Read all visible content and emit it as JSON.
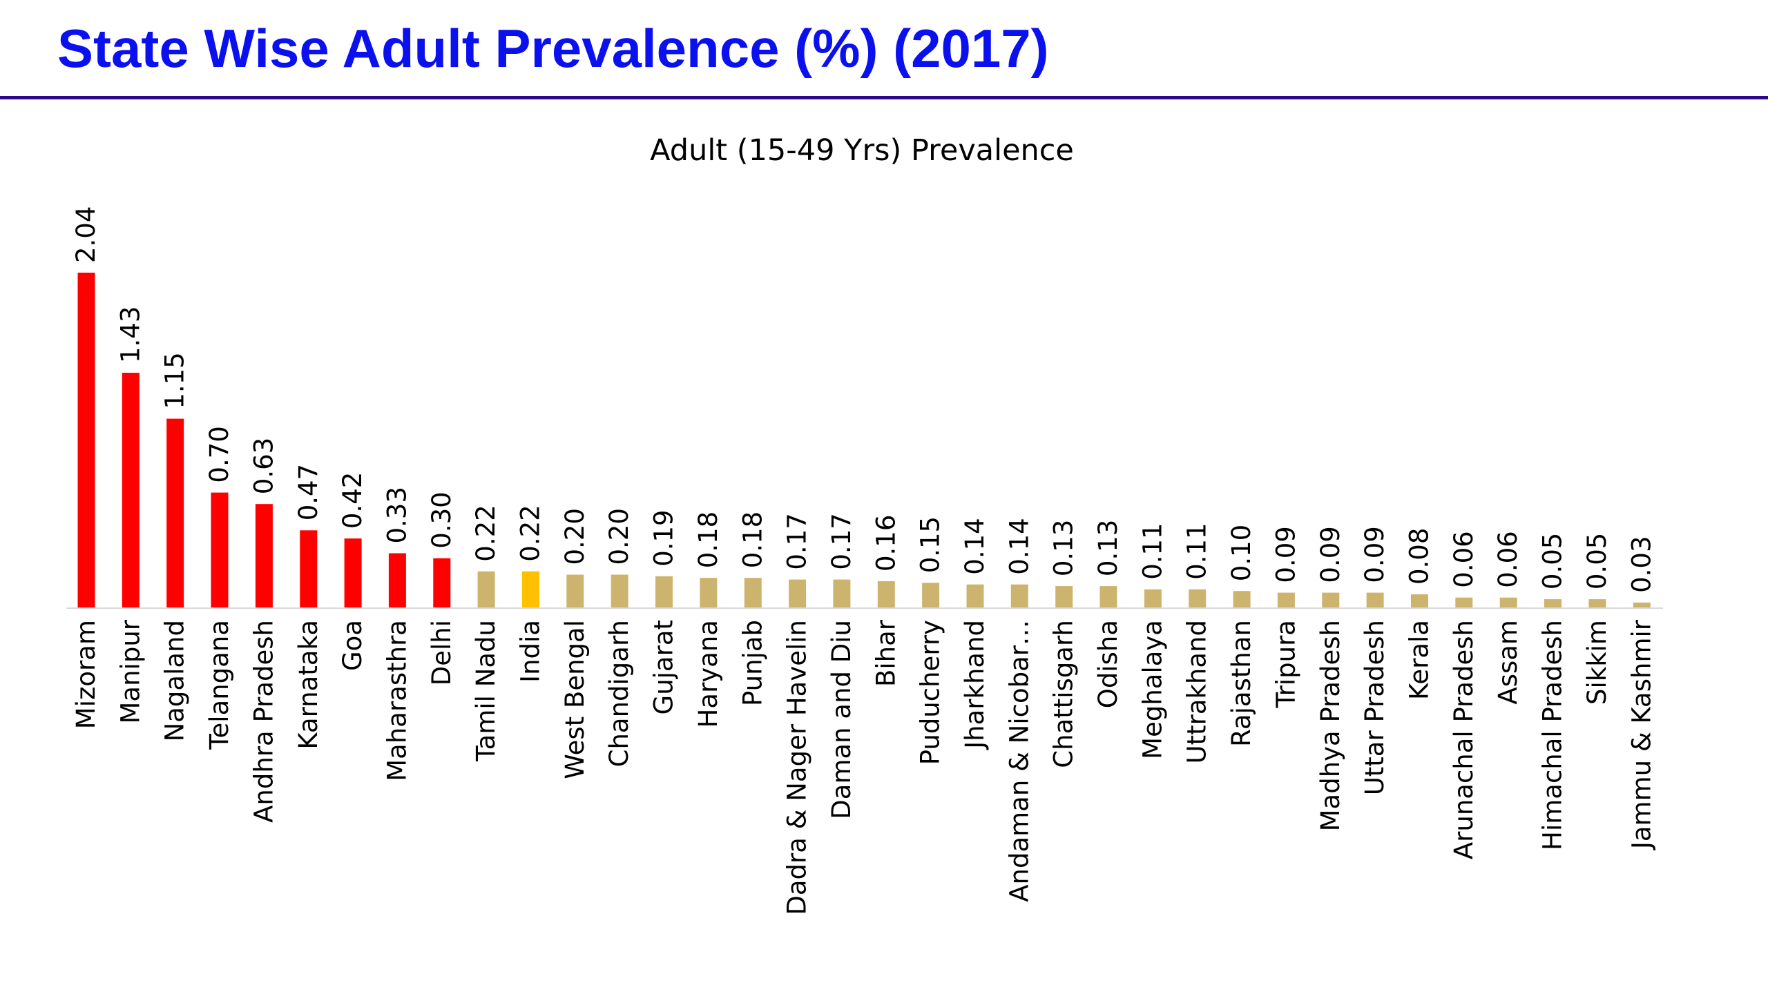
{
  "slide": {
    "title": "State Wise Adult Prevalence (%) (2017)"
  },
  "colors": {
    "title": "#0a10ee",
    "rule": "#2e0a86",
    "high": "#ff0000",
    "low": "#cdb46e",
    "national": "#ffc000",
    "axis": "#d9d9d9"
  },
  "chart_data": {
    "type": "bar",
    "title": "Adult (15-49 Yrs) Prevalence",
    "xlabel": "",
    "ylabel": "",
    "ylim": [
      0,
      2.04
    ],
    "grid": false,
    "legend": "none",
    "categories": [
      "Mizoram",
      "Manipur",
      "Nagaland",
      "Telangana",
      "Andhra Pradesh",
      "Karnataka",
      "Goa",
      "Maharasthra",
      "Delhi",
      "Tamil Nadu",
      "India",
      "West Bengal",
      "Chandigarh",
      "Gujarat",
      "Haryana",
      "Punjab",
      "Dadra & Nager Havelin",
      "Daman and Diu",
      "Bihar",
      "Puducherry",
      "Jharkhand",
      "Andaman & Nicobar…",
      "Chattisgarh",
      "Odisha",
      "Meghalaya",
      "Uttrakhand",
      "Rajasthan",
      "Tripura",
      "Madhya Pradesh",
      "Uttar Pradesh",
      "Kerala",
      "Arunachal Pradesh",
      "Assam",
      "Himachal Pradesh",
      "Sikkim",
      "Jammu & Kashmir"
    ],
    "values": [
      2.04,
      1.43,
      1.15,
      0.7,
      0.63,
      0.47,
      0.42,
      0.33,
      0.3,
      0.22,
      0.22,
      0.2,
      0.2,
      0.19,
      0.18,
      0.18,
      0.17,
      0.17,
      0.16,
      0.15,
      0.14,
      0.14,
      0.13,
      0.13,
      0.11,
      0.11,
      0.1,
      0.09,
      0.09,
      0.09,
      0.08,
      0.06,
      0.06,
      0.05,
      0.05,
      0.03
    ],
    "value_labels": [
      "2.04",
      "1.43",
      "1.15",
      "0.70",
      "0.63",
      "0.47",
      "0.42",
      "0.33",
      "0.30",
      "0.22",
      "0.22",
      "0.20",
      "0.20",
      "0.19",
      "0.18",
      "0.18",
      "0.17",
      "0.17",
      "0.16",
      "0.15",
      "0.14",
      "0.14",
      "0.13",
      "0.13",
      "0.11",
      "0.11",
      "0.10",
      "0.09",
      "0.09",
      "0.09",
      "0.08",
      "0.06",
      "0.06",
      "0.05",
      "0.05",
      "0.03"
    ],
    "bar_groups": [
      "high",
      "high",
      "high",
      "high",
      "high",
      "high",
      "high",
      "high",
      "high",
      "low",
      "national",
      "low",
      "low",
      "low",
      "low",
      "low",
      "low",
      "low",
      "low",
      "low",
      "low",
      "low",
      "low",
      "low",
      "low",
      "low",
      "low",
      "low",
      "low",
      "low",
      "low",
      "low",
      "low",
      "low",
      "low",
      "low"
    ]
  }
}
